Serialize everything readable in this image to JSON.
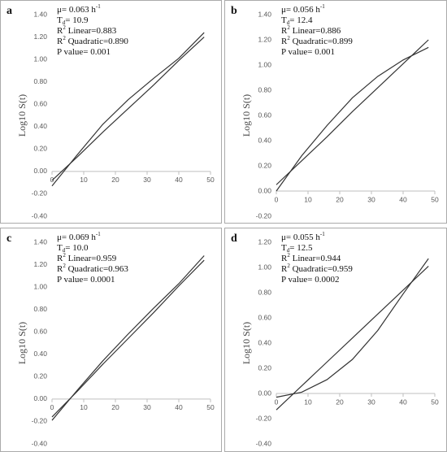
{
  "chart_data": [
    {
      "type": "line",
      "panel": "a",
      "ylabel": "Log10 S(t)",
      "annotations": [
        {
          "text": "μ= 0.063 h",
          "sup": "-1"
        },
        {
          "text": "T",
          "sub": "d",
          "rest": "= 10.9"
        },
        {
          "text": "R",
          "sup": "2",
          "rest": " Linear=0.883"
        },
        {
          "text": "R",
          "sup": "2",
          "rest": " Quadratic=0.890"
        },
        {
          "text": "P value= 0.001"
        }
      ],
      "x": [
        0,
        8,
        16,
        24,
        32,
        40,
        48
      ],
      "series": [
        {
          "color": "#333333",
          "values": [
            -0.08,
            0.13,
            0.35,
            0.56,
            0.77,
            0.99,
            1.2
          ]
        },
        {
          "color": "#333333",
          "values": [
            -0.13,
            0.15,
            0.42,
            0.64,
            0.83,
            1.01,
            1.24
          ]
        }
      ],
      "xlim": [
        0,
        50
      ],
      "xticks": [
        0,
        10,
        20,
        30,
        40,
        50
      ],
      "ylim": [
        -0.4,
        1.4
      ],
      "yticks": [
        {
          "value": -0.4,
          "label": "-0.40"
        },
        {
          "value": -0.2,
          "label": "-0.20"
        },
        {
          "value": 0,
          "label": "0.00"
        },
        {
          "value": 0.2,
          "label": "0.20"
        },
        {
          "value": 0.4,
          "label": "0.40"
        },
        {
          "value": 0.6,
          "label": "0.60"
        },
        {
          "value": 0.8,
          "label": "0.80"
        },
        {
          "value": 1.0,
          "label": "1.00"
        },
        {
          "value": 1.2,
          "label": "1.20"
        },
        {
          "value": 1.4,
          "label": "1.40"
        }
      ]
    },
    {
      "type": "line",
      "panel": "b",
      "ylabel": "Log10 S(t)",
      "annotations": [
        {
          "text": "μ= 0.056 h",
          "sup": "-1"
        },
        {
          "text": "T",
          "sub": "d",
          "rest": "= 12.4"
        },
        {
          "text": "R",
          "sup": "2",
          "rest": " Linear=0.886"
        },
        {
          "text": "R",
          "sup": "2",
          "rest": " Quadratic=0.899"
        },
        {
          "text": "P value= 0.001"
        }
      ],
      "x": [
        0,
        8,
        16,
        24,
        32,
        40,
        48
      ],
      "series": [
        {
          "color": "#333333",
          "values": [
            0.05,
            0.24,
            0.43,
            0.63,
            0.82,
            1.01,
            1.2
          ]
        },
        {
          "color": "#333333",
          "values": [
            0.0,
            0.28,
            0.52,
            0.74,
            0.91,
            1.04,
            1.14
          ]
        }
      ],
      "xlim": [
        0,
        50
      ],
      "xticks": [
        0,
        10,
        20,
        30,
        40,
        50
      ],
      "ylim": [
        -0.2,
        1.4
      ],
      "yticks": [
        {
          "value": -0.2,
          "label": "-0.20"
        },
        {
          "value": 0,
          "label": "0.00"
        },
        {
          "value": 0.2,
          "label": "0.20"
        },
        {
          "value": 0.4,
          "label": "0.40"
        },
        {
          "value": 0.6,
          "label": "0.60"
        },
        {
          "value": 0.8,
          "label": "0.80"
        },
        {
          "value": 1.0,
          "label": "1.00"
        },
        {
          "value": 1.2,
          "label": "1.20"
        },
        {
          "value": 1.4,
          "label": "1.40"
        }
      ]
    },
    {
      "type": "line",
      "panel": "c",
      "ylabel": "Log10 S(t)",
      "annotations": [
        {
          "text": "μ= 0.069 h",
          "sup": "-1"
        },
        {
          "text": "T",
          "sub": "d",
          "rest": "= 10.0"
        },
        {
          "text": "R",
          "sup": "2",
          "rest": " Linear=0.959"
        },
        {
          "text": "R",
          "sup": "2",
          "rest": " Quadratic=0.963"
        },
        {
          "text": "P value= 0.0001"
        }
      ],
      "x": [
        0,
        8,
        16,
        24,
        32,
        40,
        48
      ],
      "series": [
        {
          "color": "#333333",
          "values": [
            -0.16,
            0.07,
            0.31,
            0.54,
            0.77,
            1.01,
            1.24
          ]
        },
        {
          "color": "#333333",
          "values": [
            -0.19,
            0.08,
            0.34,
            0.58,
            0.81,
            1.03,
            1.28
          ]
        }
      ],
      "xlim": [
        0,
        50
      ],
      "xticks": [
        0,
        10,
        20,
        30,
        40,
        50
      ],
      "ylim": [
        -0.4,
        1.4
      ],
      "yticks": [
        {
          "value": -0.4,
          "label": "-0.40"
        },
        {
          "value": -0.2,
          "label": "-0.20"
        },
        {
          "value": 0,
          "label": "0.00"
        },
        {
          "value": 0.2,
          "label": "0.20"
        },
        {
          "value": 0.4,
          "label": "0.40"
        },
        {
          "value": 0.6,
          "label": "0.60"
        },
        {
          "value": 0.8,
          "label": "0.80"
        },
        {
          "value": 1.0,
          "label": "1.00"
        },
        {
          "value": 1.2,
          "label": "1.20"
        },
        {
          "value": 1.4,
          "label": "1.40"
        }
      ]
    },
    {
      "type": "line",
      "panel": "d",
      "ylabel": "Log10 S(t)",
      "annotations": [
        {
          "text": "μ= 0.055 h",
          "sup": "-1"
        },
        {
          "text": "T",
          "sub": "d",
          "rest": "= 12.5"
        },
        {
          "text": "R",
          "sup": "2",
          "rest": " Linear=0.944"
        },
        {
          "text": "R",
          "sup": "2",
          "rest": " Quadratic=0.959"
        },
        {
          "text": "P value= 0.0002"
        }
      ],
      "x": [
        0,
        8,
        16,
        24,
        32,
        40,
        48
      ],
      "series": [
        {
          "color": "#333333",
          "values": [
            -0.13,
            0.06,
            0.25,
            0.44,
            0.63,
            0.82,
            1.01
          ]
        },
        {
          "color": "#333333",
          "values": [
            -0.03,
            0.01,
            0.11,
            0.27,
            0.5,
            0.79,
            1.07
          ]
        }
      ],
      "xlim": [
        0,
        50
      ],
      "xticks": [
        0,
        10,
        20,
        30,
        40,
        50
      ],
      "ylim": [
        -0.4,
        1.2
      ],
      "yticks": [
        {
          "value": -0.4,
          "label": "-0.40"
        },
        {
          "value": -0.2,
          "label": "-0.20"
        },
        {
          "value": 0,
          "label": "0.00"
        },
        {
          "value": 0.2,
          "label": "0.20"
        },
        {
          "value": 0.4,
          "label": "0.40"
        },
        {
          "value": 0.6,
          "label": "0.60"
        },
        {
          "value": 0.8,
          "label": "0.80"
        },
        {
          "value": 1.0,
          "label": "1.00"
        },
        {
          "value": 1.2,
          "label": "1.20"
        }
      ]
    }
  ]
}
